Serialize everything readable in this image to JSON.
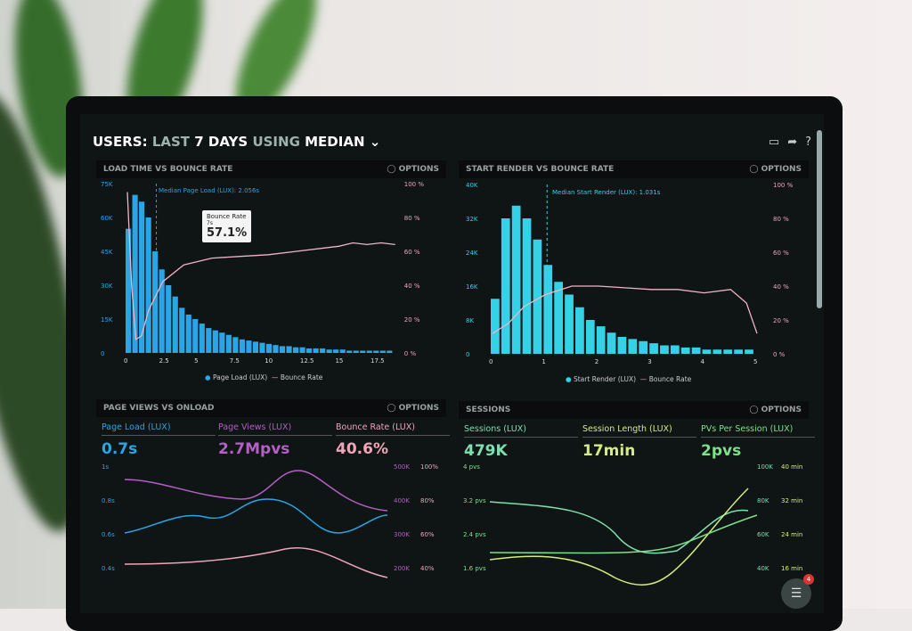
{
  "header": {
    "title_users": "USERS:",
    "title_last": "LAST",
    "title_days": "7 DAYS",
    "title_using": "USING",
    "title_median": "MEDIAN",
    "chevron": "chevron-down-icon",
    "icons": [
      "monitor-icon",
      "share-icon",
      "help-icon"
    ]
  },
  "panels": {
    "load": {
      "title": "LOAD TIME VS BOUNCE RATE",
      "options": "OPTIONS",
      "median_label": "Median Page Load (LUX): 2.056s",
      "tooltip_title": "Bounce Rate",
      "tooltip_sub": "7s",
      "tooltip_value": "57.1%",
      "y_left": [
        "75K",
        "60K",
        "45K",
        "30K",
        "15K",
        "0"
      ],
      "y_right": [
        "100 %",
        "80 %",
        "60 %",
        "40 %",
        "20 %",
        "0 %"
      ],
      "x_ticks": [
        "0",
        "2.5",
        "5",
        "7.5",
        "10",
        "12.5",
        "15",
        "17.5"
      ],
      "legend": [
        "Page Load (LUX)",
        "Bounce Rate"
      ]
    },
    "render": {
      "title": "START RENDER VS BOUNCE RATE",
      "options": "OPTIONS",
      "median_label": "Median Start Render (LUX): 1.031s",
      "y_left": [
        "40K",
        "32K",
        "24K",
        "16K",
        "8K",
        "0"
      ],
      "y_right": [
        "100 %",
        "80 %",
        "60 %",
        "40 %",
        "20 %",
        "0 %"
      ],
      "x_ticks": [
        "0",
        "1",
        "2",
        "3",
        "4",
        "5"
      ],
      "legend": [
        "Start Render (LUX)",
        "Bounce Rate"
      ]
    },
    "pageviews": {
      "title": "PAGE VIEWS VS ONLOAD",
      "options": "OPTIONS",
      "kpis": [
        {
          "label": "Page Load (LUX)",
          "value": "0.7s"
        },
        {
          "label": "Page Views (LUX)",
          "value": "2.7Mpvs"
        },
        {
          "label": "Bounce Rate (LUX)",
          "value": "40.6%"
        }
      ],
      "y_left": [
        "1s",
        "0.8s",
        "0.6s",
        "0.4s"
      ],
      "y_mid": [
        "500K",
        "400K",
        "300K",
        "200K"
      ],
      "y_right": [
        "100%",
        "80%",
        "60%",
        "40%"
      ]
    },
    "sessions": {
      "title": "SESSIONS",
      "options": "OPTIONS",
      "kpis": [
        {
          "label": "Sessions (LUX)",
          "value": "479K"
        },
        {
          "label": "Session Length (LUX)",
          "value": "17min"
        },
        {
          "label": "PVs Per Session (LUX)",
          "value": "2pvs"
        }
      ],
      "y_left": [
        "4 pvs",
        "3.2 pvs",
        "2.4 pvs",
        "1.6 pvs"
      ],
      "y_mid": [
        "100K",
        "80K",
        "60K",
        "40K"
      ],
      "y_right": [
        "40 min",
        "32 min",
        "24 min",
        "16 min"
      ]
    }
  },
  "chat_badge": {
    "count": "4"
  },
  "colors": {
    "blue": "#2aa6e6",
    "cyan": "#35d1e6",
    "pink": "#f0a5b8",
    "purple": "#b45fc4",
    "green": "#7ee08a",
    "lime": "#d4ee7a"
  },
  "chart_data": [
    {
      "type": "bar",
      "title": "LOAD TIME VS BOUNCE RATE",
      "xlim": [
        0,
        19
      ],
      "ylim": [
        0,
        75000
      ],
      "y2lim": [
        0,
        100
      ],
      "series": [
        {
          "name": "Page Load (LUX)",
          "x_step": 0.475,
          "values": [
            55000,
            70000,
            67000,
            60000,
            45000,
            37000,
            30000,
            25000,
            20000,
            17000,
            15000,
            13000,
            11000,
            10000,
            9000,
            8000,
            7000,
            6000,
            5500,
            5000,
            4500,
            4000,
            3500,
            3000,
            3000,
            2500,
            2500,
            2000,
            2000,
            2000,
            1500,
            1500,
            1500,
            1000,
            1000,
            1000,
            1000,
            1000,
            1000,
            1000
          ]
        },
        {
          "name": "Bounce Rate",
          "type": "line",
          "x": [
            0,
            0.3,
            0.6,
            1,
            1.5,
            2.5,
            4,
            6,
            8,
            10,
            12,
            14,
            15,
            16,
            17,
            18,
            19
          ],
          "values": [
            95,
            40,
            8,
            10,
            25,
            42,
            52,
            56,
            57,
            58,
            60,
            62,
            63,
            65,
            64,
            65,
            64
          ]
        }
      ]
    },
    {
      "type": "bar",
      "title": "START RENDER VS BOUNCE RATE",
      "xlim": [
        0,
        5
      ],
      "ylim": [
        0,
        40000
      ],
      "y2lim": [
        0,
        100
      ],
      "series": [
        {
          "name": "Start Render (LUX)",
          "x_step": 0.2,
          "values": [
            13000,
            32000,
            35000,
            32000,
            27000,
            21000,
            17000,
            14000,
            11000,
            8000,
            6500,
            5000,
            4000,
            3500,
            3000,
            2500,
            2000,
            2000,
            1500,
            1500,
            1000,
            1000,
            1000,
            1000,
            1000
          ]
        },
        {
          "name": "Bounce Rate",
          "type": "line",
          "x": [
            0,
            0.3,
            0.6,
            1,
            1.5,
            2,
            2.5,
            3,
            3.5,
            4,
            4.5,
            4.8,
            5
          ],
          "values": [
            12,
            18,
            28,
            35,
            40,
            40,
            39,
            38,
            38,
            36,
            38,
            30,
            12
          ]
        }
      ]
    }
  ]
}
